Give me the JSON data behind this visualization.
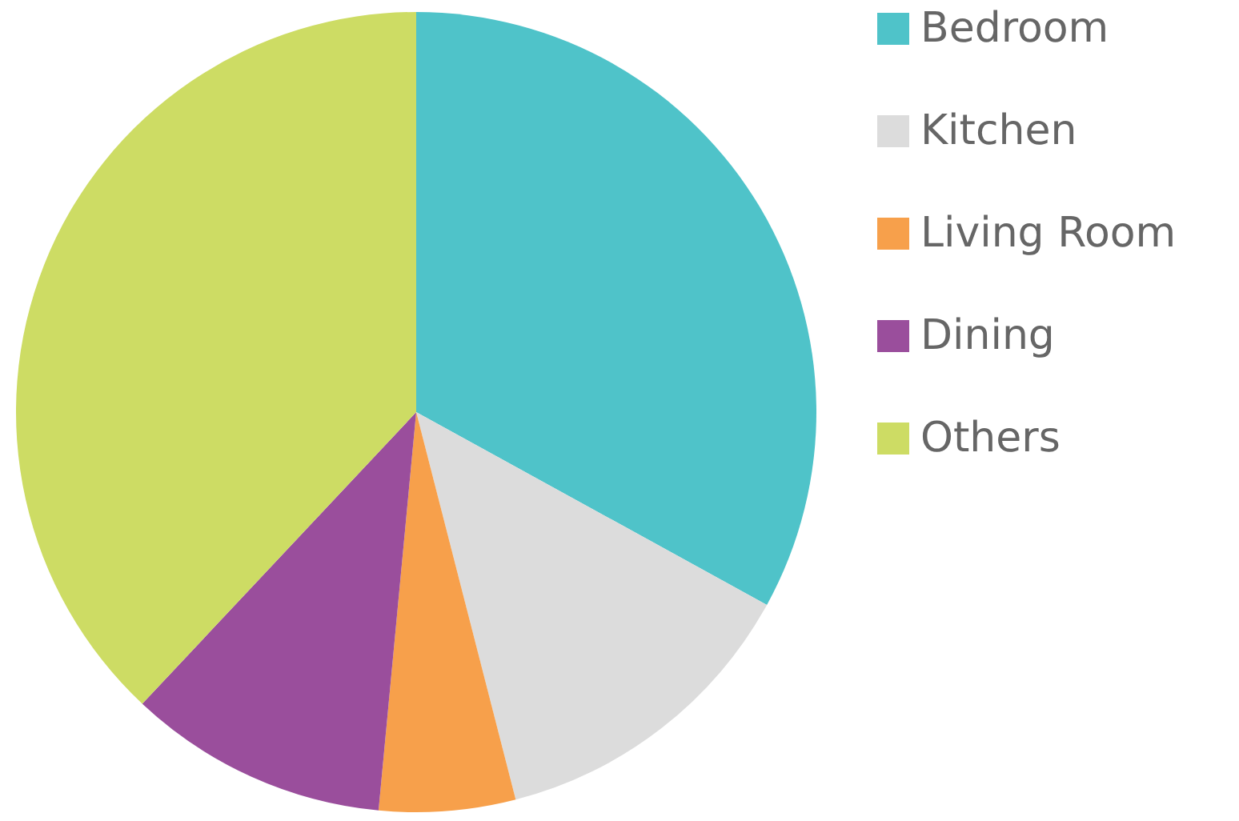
{
  "chart_data": {
    "type": "pie",
    "categories": [
      "Bedroom",
      "Kitchen",
      "Living Room",
      "Dining",
      "Others"
    ],
    "values": [
      33,
      13,
      5.5,
      10.5,
      38
    ],
    "colors": [
      "#4fc3c9",
      "#dcdcdc",
      "#f7a04b",
      "#9a4e9c",
      "#cddc64"
    ],
    "legend": "right"
  }
}
